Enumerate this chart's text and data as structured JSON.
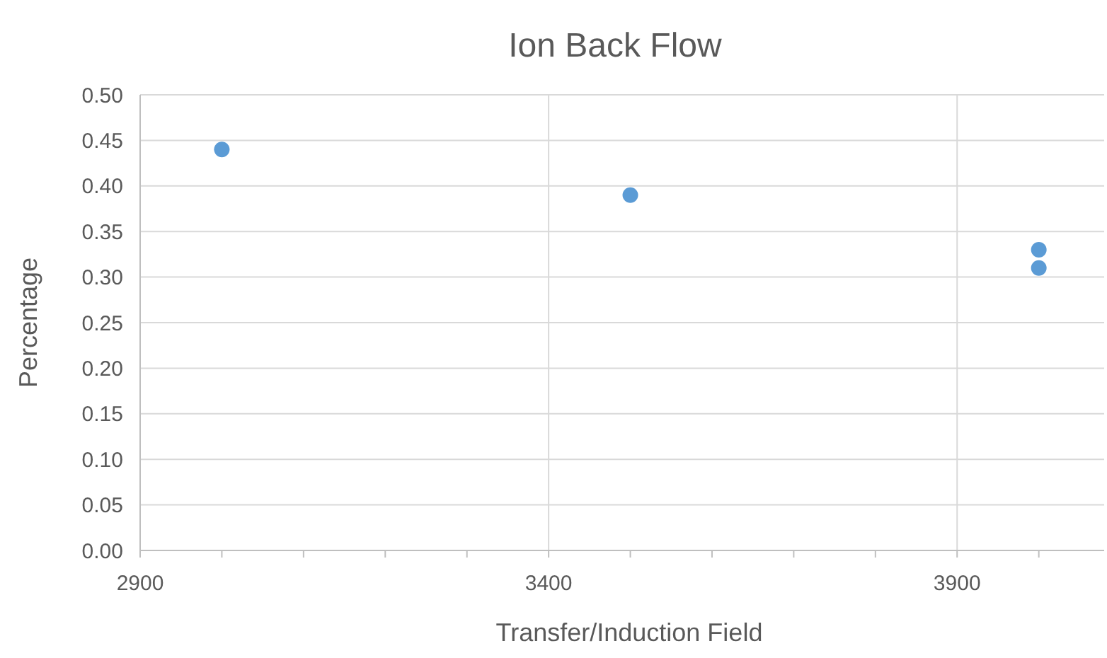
{
  "chart_data": {
    "type": "scatter",
    "title": "Ion Back Flow",
    "xlabel": "Transfer/Induction Field",
    "ylabel": "Percentage",
    "x": [
      3000,
      3500,
      4000,
      4000
    ],
    "series": [
      {
        "color": "#5b9bd5",
        "values": [
          0.44,
          0.39,
          0.33,
          0.31
        ]
      }
    ],
    "xlim": [
      2900,
      4080
    ],
    "xticks": [
      2900,
      {
        "value": 3000,
        "label": null
      },
      {
        "value": 3100,
        "label": null
      },
      {
        "value": 3200,
        "label": null
      },
      {
        "value": 3300,
        "label": null
      },
      3400,
      {
        "value": 3500,
        "label": null
      },
      {
        "value": 3600,
        "label": null
      },
      {
        "value": 3700,
        "label": null
      },
      {
        "value": 3800,
        "label": null
      },
      3900,
      {
        "value": 4000,
        "label": null
      }
    ],
    "ylim": [
      0,
      0.5
    ],
    "yticks": [
      {
        "value": 0,
        "label": "0.00"
      },
      {
        "value": 0.05,
        "label": "0.05"
      },
      {
        "value": 0.1,
        "label": "0.10"
      },
      {
        "value": 0.15,
        "label": "0.15"
      },
      {
        "value": 0.2,
        "label": "0.20"
      },
      {
        "value": 0.25,
        "label": "0.25"
      },
      {
        "value": 0.3,
        "label": "0.30"
      },
      {
        "value": 0.35,
        "label": "0.35"
      },
      {
        "value": 0.4,
        "label": "0.40"
      },
      {
        "value": 0.45,
        "label": "0.45"
      },
      {
        "value": 0.5,
        "label": "0.50"
      }
    ],
    "grid": true,
    "marker": "circle"
  }
}
